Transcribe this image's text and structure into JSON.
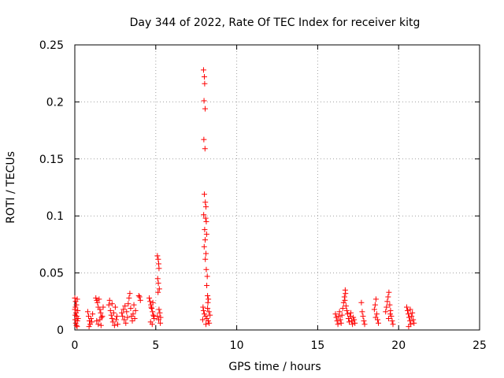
{
  "colors": {
    "series": "#ff0000",
    "grid": "#a0a0a0",
    "axis": "#000000"
  },
  "chart_data": {
    "type": "scatter",
    "title": "Day 344 of 2022, Rate Of TEC Index for receiver kitg",
    "xlabel": "GPS time / hours",
    "ylabel": "ROTI / TECUs",
    "xlim": [
      0,
      25
    ],
    "ylim": [
      0,
      0.25
    ],
    "x_ticks": [
      0,
      5,
      10,
      15,
      20,
      25
    ],
    "y_ticks": [
      0,
      0.05,
      0.1,
      0.15,
      0.2,
      0.25
    ],
    "x_tick_labels": [
      "0",
      "5",
      "10",
      "15",
      "20",
      "25"
    ],
    "y_tick_labels": [
      "0",
      "0.05",
      "0.1",
      "0.15",
      "0.2",
      "0.25"
    ],
    "grid": true,
    "marker": "+",
    "series": [
      {
        "name": "ROTI",
        "points": [
          [
            0.0,
            0.028
          ],
          [
            0.05,
            0.025
          ],
          [
            0.1,
            0.022
          ],
          [
            0.15,
            0.027
          ],
          [
            0.0,
            0.018
          ],
          [
            0.08,
            0.015
          ],
          [
            0.12,
            0.012
          ],
          [
            0.02,
            0.009
          ],
          [
            0.06,
            0.006
          ],
          [
            0.1,
            0.004
          ],
          [
            0.14,
            0.003
          ],
          [
            0.04,
            0.02
          ],
          [
            0.18,
            0.017
          ],
          [
            0.2,
            0.01
          ],
          [
            0.03,
            0.013
          ],
          [
            0.16,
            0.008
          ],
          [
            0.8,
            0.016
          ],
          [
            0.85,
            0.012
          ],
          [
            0.9,
            0.008
          ],
          [
            0.95,
            0.005
          ],
          [
            1.0,
            0.01
          ],
          [
            1.05,
            0.007
          ],
          [
            1.1,
            0.014
          ],
          [
            0.88,
            0.003
          ],
          [
            1.3,
            0.028
          ],
          [
            1.35,
            0.026
          ],
          [
            1.4,
            0.024
          ],
          [
            1.45,
            0.02
          ],
          [
            1.5,
            0.027
          ],
          [
            1.55,
            0.018
          ],
          [
            1.6,
            0.015
          ],
          [
            1.65,
            0.011
          ],
          [
            1.35,
            0.008
          ],
          [
            1.45,
            0.005
          ],
          [
            1.55,
            0.009
          ],
          [
            1.62,
            0.004
          ],
          [
            1.7,
            0.012
          ],
          [
            1.75,
            0.02
          ],
          [
            2.1,
            0.022
          ],
          [
            2.15,
            0.026
          ],
          [
            2.2,
            0.017
          ],
          [
            2.25,
            0.013
          ],
          [
            2.3,
            0.01
          ],
          [
            2.35,
            0.007
          ],
          [
            2.4,
            0.015
          ],
          [
            2.45,
            0.004
          ],
          [
            2.5,
            0.02
          ],
          [
            2.55,
            0.009
          ],
          [
            2.6,
            0.012
          ],
          [
            2.65,
            0.005
          ],
          [
            2.3,
            0.023
          ],
          [
            2.9,
            0.015
          ],
          [
            2.95,
            0.012
          ],
          [
            3.0,
            0.018
          ],
          [
            3.05,
            0.009
          ],
          [
            3.1,
            0.021
          ],
          [
            3.15,
            0.006
          ],
          [
            3.2,
            0.016
          ],
          [
            3.25,
            0.011
          ],
          [
            3.3,
            0.023
          ],
          [
            3.35,
            0.028
          ],
          [
            3.4,
            0.032
          ],
          [
            3.45,
            0.019
          ],
          [
            3.5,
            0.012
          ],
          [
            3.55,
            0.008
          ],
          [
            3.6,
            0.014
          ],
          [
            3.65,
            0.022
          ],
          [
            3.7,
            0.01
          ],
          [
            3.75,
            0.017
          ],
          [
            3.95,
            0.03
          ],
          [
            4.0,
            0.029
          ],
          [
            4.05,
            0.026
          ],
          [
            4.6,
            0.028
          ],
          [
            4.65,
            0.025
          ],
          [
            4.7,
            0.022
          ],
          [
            4.75,
            0.019
          ],
          [
            4.8,
            0.016
          ],
          [
            4.85,
            0.013
          ],
          [
            4.9,
            0.01
          ],
          [
            4.68,
            0.007
          ],
          [
            4.78,
            0.005
          ],
          [
            4.88,
            0.012
          ],
          [
            4.72,
            0.02
          ],
          [
            4.82,
            0.024
          ],
          [
            5.1,
            0.065
          ],
          [
            5.15,
            0.062
          ],
          [
            5.18,
            0.058
          ],
          [
            5.2,
            0.054
          ],
          [
            5.12,
            0.045
          ],
          [
            5.16,
            0.041
          ],
          [
            5.22,
            0.036
          ],
          [
            5.14,
            0.033
          ],
          [
            5.2,
            0.018
          ],
          [
            5.25,
            0.015
          ],
          [
            5.1,
            0.012
          ],
          [
            5.18,
            0.009
          ],
          [
            5.28,
            0.006
          ],
          [
            5.3,
            0.011
          ],
          [
            7.95,
            0.228
          ],
          [
            8.0,
            0.222
          ],
          [
            8.02,
            0.216
          ],
          [
            7.98,
            0.201
          ],
          [
            8.05,
            0.194
          ],
          [
            7.97,
            0.167
          ],
          [
            8.04,
            0.159
          ],
          [
            8.0,
            0.119
          ],
          [
            8.06,
            0.112
          ],
          [
            8.1,
            0.108
          ],
          [
            7.96,
            0.101
          ],
          [
            8.08,
            0.098
          ],
          [
            8.12,
            0.095
          ],
          [
            8.02,
            0.088
          ],
          [
            8.14,
            0.084
          ],
          [
            8.05,
            0.079
          ],
          [
            7.99,
            0.073
          ],
          [
            8.1,
            0.067
          ],
          [
            8.06,
            0.062
          ],
          [
            8.12,
            0.053
          ],
          [
            8.18,
            0.047
          ],
          [
            8.15,
            0.039
          ],
          [
            8.2,
            0.03
          ],
          [
            8.25,
            0.027
          ],
          [
            8.22,
            0.024
          ],
          [
            7.92,
            0.02
          ],
          [
            7.95,
            0.017
          ],
          [
            8.0,
            0.014
          ],
          [
            8.08,
            0.012
          ],
          [
            8.16,
            0.01
          ],
          [
            8.24,
            0.008
          ],
          [
            8.3,
            0.006
          ],
          [
            8.35,
            0.013
          ],
          [
            8.28,
            0.016
          ],
          [
            7.9,
            0.009
          ],
          [
            8.1,
            0.005
          ],
          [
            8.2,
            0.019
          ],
          [
            16.1,
            0.014
          ],
          [
            16.15,
            0.011
          ],
          [
            16.2,
            0.008
          ],
          [
            16.25,
            0.005
          ],
          [
            16.3,
            0.012
          ],
          [
            16.35,
            0.016
          ],
          [
            16.4,
            0.009
          ],
          [
            16.45,
            0.006
          ],
          [
            16.5,
            0.013
          ],
          [
            16.55,
            0.019
          ],
          [
            16.6,
            0.024
          ],
          [
            16.65,
            0.029
          ],
          [
            16.7,
            0.035
          ],
          [
            16.72,
            0.032
          ],
          [
            16.68,
            0.026
          ],
          [
            16.75,
            0.021
          ],
          [
            16.8,
            0.017
          ],
          [
            16.85,
            0.014
          ],
          [
            16.9,
            0.01
          ],
          [
            16.95,
            0.007
          ],
          [
            17.0,
            0.012
          ],
          [
            17.05,
            0.015
          ],
          [
            17.1,
            0.008
          ],
          [
            17.15,
            0.005
          ],
          [
            17.2,
            0.011
          ],
          [
            17.25,
            0.009
          ],
          [
            17.3,
            0.006
          ],
          [
            17.7,
            0.024
          ],
          [
            17.75,
            0.016
          ],
          [
            17.8,
            0.012
          ],
          [
            17.85,
            0.008
          ],
          [
            17.9,
            0.005
          ],
          [
            18.5,
            0.018
          ],
          [
            18.55,
            0.022
          ],
          [
            18.6,
            0.027
          ],
          [
            18.65,
            0.014
          ],
          [
            18.7,
            0.009
          ],
          [
            18.75,
            0.006
          ],
          [
            18.58,
            0.011
          ],
          [
            19.2,
            0.016
          ],
          [
            19.25,
            0.02
          ],
          [
            19.3,
            0.025
          ],
          [
            19.35,
            0.029
          ],
          [
            19.4,
            0.033
          ],
          [
            19.45,
            0.022
          ],
          [
            19.5,
            0.017
          ],
          [
            19.55,
            0.012
          ],
          [
            19.6,
            0.008
          ],
          [
            19.65,
            0.005
          ],
          [
            19.38,
            0.01
          ],
          [
            19.48,
            0.014
          ],
          [
            20.5,
            0.02
          ],
          [
            20.55,
            0.017
          ],
          [
            20.6,
            0.014
          ],
          [
            20.65,
            0.011
          ],
          [
            20.7,
            0.008
          ],
          [
            20.75,
            0.005
          ],
          [
            20.8,
            0.012
          ],
          [
            20.85,
            0.015
          ],
          [
            20.9,
            0.009
          ],
          [
            20.95,
            0.006
          ],
          [
            20.62,
            0.003
          ],
          [
            20.72,
            0.018
          ]
        ]
      }
    ]
  }
}
